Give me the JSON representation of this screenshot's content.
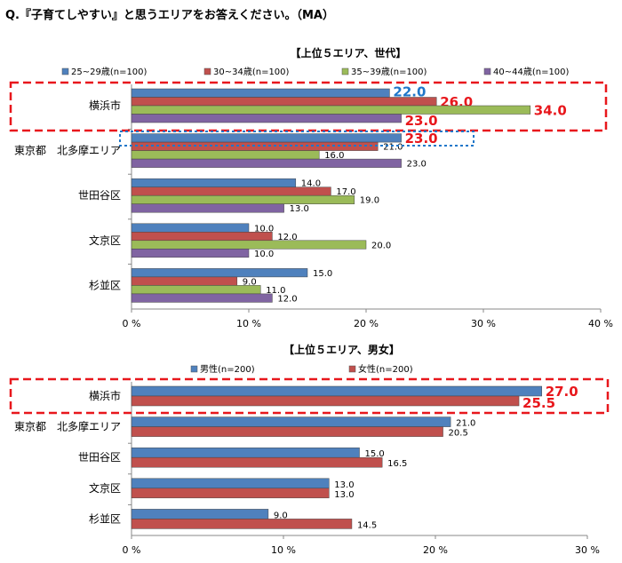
{
  "question": "Q.『子育てしやすい』と思うエリアをお答えください。（MA）",
  "colors": {
    "blue": "#4f81bd",
    "red": "#c0504d",
    "green": "#9bbb59",
    "purple": "#8064a2",
    "highlight_red": "#e8171c",
    "highlight_blue": "#1f77c9"
  },
  "chart_data": [
    {
      "type": "bar",
      "orientation": "horizontal",
      "title": "【上位５エリア、世代】",
      "categories": [
        "横浜市",
        "東京都　北多摩エリア",
        "世田谷区",
        "文京区",
        "杉並区"
      ],
      "series": [
        {
          "name": "25~29歳(n=100)",
          "values": [
            22.0,
            23.0,
            14.0,
            10.0,
            15.0
          ]
        },
        {
          "name": "30~34歳(n=100)",
          "values": [
            26.0,
            21.0,
            17.0,
            12.0,
            9.0
          ]
        },
        {
          "name": "35~39歳(n=100)",
          "values": [
            34.0,
            16.0,
            19.0,
            20.0,
            11.0
          ]
        },
        {
          "name": "40~44歳(n=100)",
          "values": [
            23.0,
            23.0,
            13.0,
            10.0,
            12.0
          ]
        }
      ],
      "xlim": [
        0,
        40
      ],
      "xticks": [
        "0 %",
        "10 %",
        "20 %",
        "30 %",
        "40 %"
      ],
      "legend_position": "top",
      "grid": false
    },
    {
      "type": "bar",
      "orientation": "horizontal",
      "title": "【上位５エリア、男女】",
      "categories": [
        "横浜市",
        "東京都　北多摩エリア",
        "世田谷区",
        "文京区",
        "杉並区"
      ],
      "series": [
        {
          "name": "男性(n=200)",
          "values": [
            27.0,
            21.0,
            15.0,
            13.0,
            9.0
          ]
        },
        {
          "name": "女性(n=200)",
          "values": [
            25.5,
            20.5,
            16.5,
            13.0,
            14.5
          ]
        }
      ],
      "xlim": [
        0,
        30
      ],
      "xticks": [
        "0 %",
        "10 %",
        "20 %",
        "30 %"
      ],
      "legend_position": "top",
      "grid": false
    }
  ]
}
